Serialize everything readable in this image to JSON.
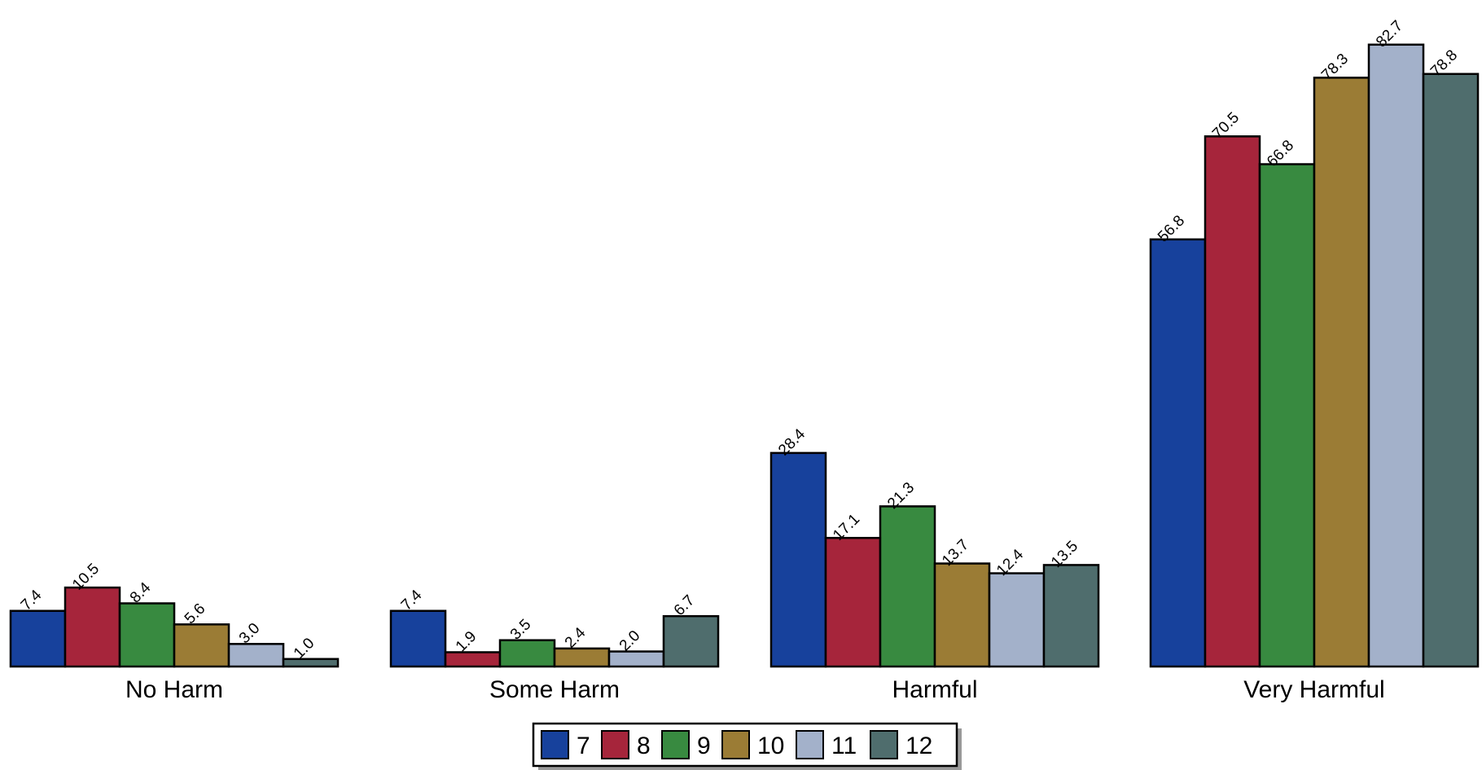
{
  "chart_data": {
    "type": "bar",
    "title": "",
    "xlabel": "",
    "ylabel": "",
    "ylim": [
      0,
      83
    ],
    "categories": [
      "No Harm",
      "Some Harm",
      "Harmful",
      "Very Harmful"
    ],
    "series": [
      {
        "name": "7",
        "color": "#17419c",
        "values": [
          7.4,
          7.4,
          28.4,
          56.8
        ]
      },
      {
        "name": "8",
        "color": "#a6253b",
        "values": [
          10.5,
          1.9,
          17.1,
          70.5
        ]
      },
      {
        "name": "9",
        "color": "#388a40",
        "values": [
          8.4,
          3.5,
          21.3,
          66.8
        ]
      },
      {
        "name": "10",
        "color": "#9b7c35",
        "values": [
          5.6,
          2.4,
          13.7,
          78.3
        ]
      },
      {
        "name": "11",
        "color": "#a3b1ca",
        "values": [
          3.0,
          2.0,
          12.4,
          82.7
        ]
      },
      {
        "name": "12",
        "color": "#4f6d6d",
        "values": [
          1.0,
          6.7,
          13.5,
          78.8
        ]
      }
    ],
    "value_labels": [
      [
        "7.4",
        "7.4",
        "28.4",
        "56.8"
      ],
      [
        "10.5",
        "1.9",
        "17.1",
        "70.5"
      ],
      [
        "8.4",
        "3.5",
        "21.3",
        "66.8"
      ],
      [
        "5.6",
        "2.4",
        "13.7",
        "78.3"
      ],
      [
        "3.0",
        "2.0",
        "12.4",
        "82.7"
      ],
      [
        "1.0",
        "6.7",
        "13.5",
        "78.8"
      ]
    ],
    "grid": false,
    "legend_position": "bottom-center"
  }
}
